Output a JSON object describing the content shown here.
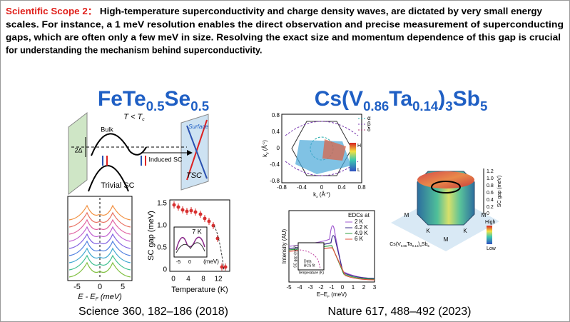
{
  "header": {
    "label": "Scientific Scope 2：",
    "lines": [
      "High-temperature superconductivity and charge density waves, are dictated by very small energy",
      "scales. For instance, a 1 meV resolution enables the direct observation and precise measurement of superconducting",
      "gaps, which are often only a few meV in size. Resolving the exact size and momentum dependence of this gap is crucial",
      "for understanding the mechanism behind superconductivity."
    ]
  },
  "left": {
    "title": [
      "FeTe",
      "0.5",
      "Se",
      "0.5"
    ],
    "citation": "Science 360, 182–186 (2018)",
    "schematic": {
      "temperature": [
        "T < T",
        "c"
      ],
      "bulk": "Bulk",
      "gap": "2Δ",
      "induced": "Induced SC",
      "surface": "Surface",
      "tsc": "TSC",
      "trivial": "Trivial SC"
    },
    "edc": {
      "xticks": [
        "-5",
        "0",
        "5"
      ],
      "xlabel": [
        "E - E",
        "F",
        " (meV)"
      ]
    },
    "gap_plot": {
      "ylabel": "SC gap (meV)",
      "yticks": [
        "0",
        "0.5",
        "1.0",
        "1.5"
      ],
      "xticks": [
        "0",
        "4",
        "8",
        "12"
      ],
      "xlabel": "Temperature (K)",
      "inset": {
        "label": "7 K",
        "xticks": [
          "-5",
          "0"
        ],
        "xlabel": "(meV)"
      }
    }
  },
  "right": {
    "title": [
      "Cs(V",
      "0.86",
      "Ta",
      "0.14",
      ")",
      "3",
      "Sb",
      "5"
    ],
    "citation": "Nature 617, 488–492 (2023)",
    "map": {
      "yticks": [
        "0.8",
        "0.4",
        "0",
        "-0.4",
        "-0.8"
      ],
      "xticks": [
        "-0.8",
        "-0.4",
        "0",
        "0.4",
        "0.8"
      ],
      "ylabel": [
        "k",
        "y",
        " (Å",
        "-1",
        ")"
      ],
      "xlabel": [
        "k",
        "x",
        " (Å",
        "-1",
        ")"
      ],
      "legend": [
        "α",
        "β",
        "δ"
      ],
      "colorbar": [
        "H",
        "L"
      ]
    },
    "edcs": {
      "ylabel": "Intensity (AU)",
      "xticks": [
        "-5",
        "-4",
        "-3",
        "-2",
        "-1",
        "0",
        "1",
        "2",
        "3"
      ],
      "xlabel": [
        "E–E",
        "F",
        " (meV)"
      ],
      "legend_title": "EDCs at",
      "legend": [
        "2 K",
        "4.2 K",
        "4.9 K",
        "6 K"
      ],
      "inset": {
        "ylabel": "SC gap (meV)",
        "legend": [
          "Data",
          "BCS fit"
        ],
        "xlabel": "Temperature (K)"
      }
    },
    "gap_3d": {
      "zlabel": "SC gap (meV)",
      "zticks": [
        "1.2",
        "1.0",
        "0.8",
        "0.6",
        "0.4",
        "0.2",
        "0"
      ],
      "points": [
        "M",
        "K",
        "M",
        "K",
        "M"
      ],
      "colorbar": [
        "High",
        "Low"
      ]
    }
  }
}
